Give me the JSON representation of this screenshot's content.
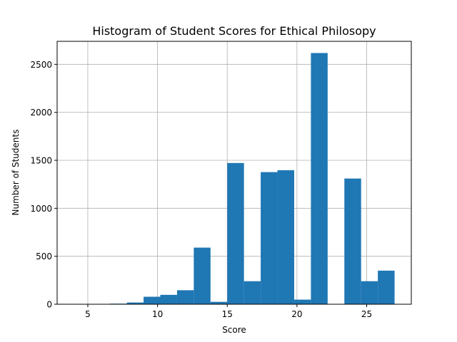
{
  "chart_data": {
    "type": "bar",
    "title": "Histogram of Student Scores for Ethical Philosopy",
    "xlabel": "Score",
    "ylabel": "Number of Students",
    "xlim": [
      2.8,
      28.2
    ],
    "ylim": [
      0,
      2740
    ],
    "grid": true,
    "bar_color": "#1f77b4",
    "bins": [
      {
        "start": 3.0,
        "end": 4.2,
        "value": 0
      },
      {
        "start": 4.2,
        "end": 5.4,
        "value": 0
      },
      {
        "start": 5.4,
        "end": 6.6,
        "value": 0
      },
      {
        "start": 6.6,
        "end": 7.8,
        "value": 6
      },
      {
        "start": 7.8,
        "end": 9.0,
        "value": 18
      },
      {
        "start": 9.0,
        "end": 10.2,
        "value": 78
      },
      {
        "start": 10.2,
        "end": 11.4,
        "value": 98
      },
      {
        "start": 11.4,
        "end": 12.6,
        "value": 146
      },
      {
        "start": 12.6,
        "end": 13.8,
        "value": 590
      },
      {
        "start": 13.8,
        "end": 15.0,
        "value": 25
      },
      {
        "start": 15.0,
        "end": 16.2,
        "value": 1472
      },
      {
        "start": 16.2,
        "end": 17.4,
        "value": 240
      },
      {
        "start": 17.4,
        "end": 18.6,
        "value": 1377
      },
      {
        "start": 18.6,
        "end": 19.8,
        "value": 1397
      },
      {
        "start": 19.8,
        "end": 21.0,
        "value": 48
      },
      {
        "start": 21.0,
        "end": 22.2,
        "value": 2618
      },
      {
        "start": 22.2,
        "end": 23.4,
        "value": 0
      },
      {
        "start": 23.4,
        "end": 24.6,
        "value": 1310
      },
      {
        "start": 24.6,
        "end": 25.8,
        "value": 240
      },
      {
        "start": 25.8,
        "end": 27.0,
        "value": 350
      }
    ],
    "x_ticks": [
      5,
      10,
      15,
      20,
      25
    ],
    "y_ticks": [
      0,
      500,
      1000,
      1500,
      2000,
      2500
    ]
  }
}
